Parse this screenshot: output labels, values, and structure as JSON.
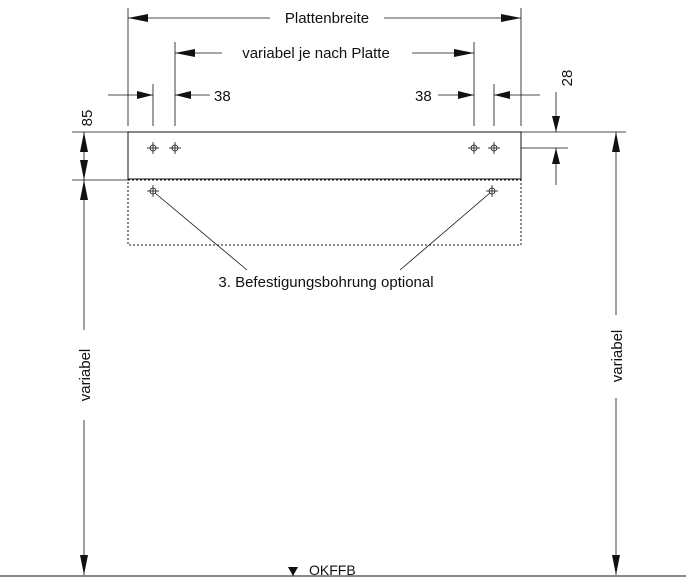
{
  "labels": {
    "panel_width": "Plattenbreite",
    "variable_per_panel": "variabel je nach Platte",
    "dim_left_38": "38",
    "dim_right_38": "38",
    "dim_28": "28",
    "dim_85": "85",
    "optional_hole_note": "3. Befestigungsbohrung optional",
    "variable_left": "variabel",
    "variable_right": "variabel",
    "floor_level": "OKFFB"
  }
}
